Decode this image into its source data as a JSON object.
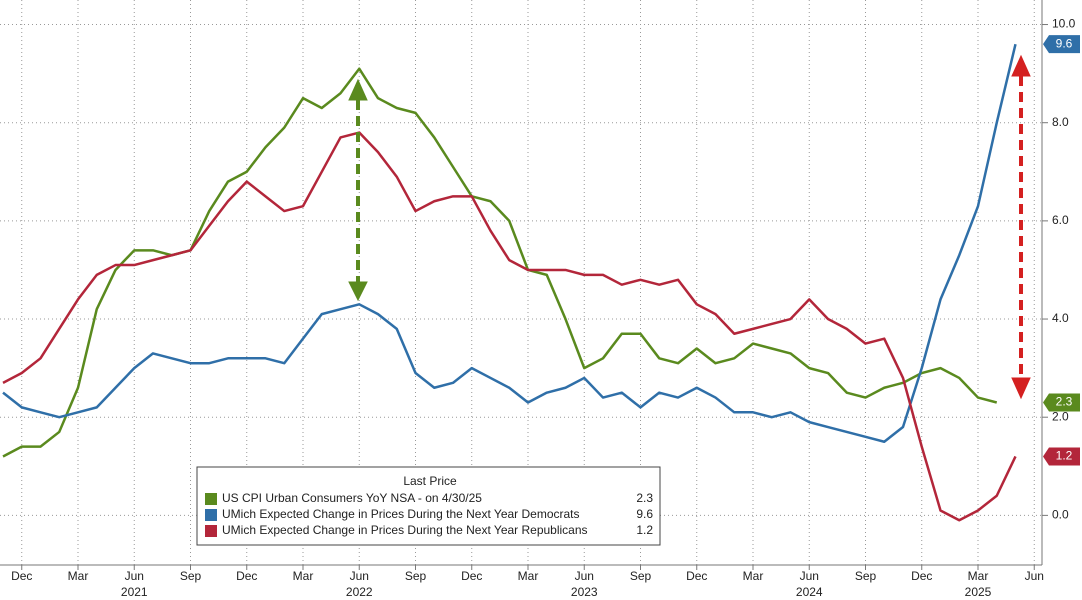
{
  "chart_data": {
    "type": "line",
    "x": [
      "2020-11",
      "2020-12",
      "2021-01",
      "2021-02",
      "2021-03",
      "2021-04",
      "2021-05",
      "2021-06",
      "2021-07",
      "2021-08",
      "2021-09",
      "2021-10",
      "2021-11",
      "2021-12",
      "2022-01",
      "2022-02",
      "2022-03",
      "2022-04",
      "2022-05",
      "2022-06",
      "2022-07",
      "2022-08",
      "2022-09",
      "2022-10",
      "2022-11",
      "2022-12",
      "2023-01",
      "2023-02",
      "2023-03",
      "2023-04",
      "2023-05",
      "2023-06",
      "2023-07",
      "2023-08",
      "2023-09",
      "2023-10",
      "2023-11",
      "2023-12",
      "2024-01",
      "2024-02",
      "2024-03",
      "2024-04",
      "2024-05",
      "2024-06",
      "2024-07",
      "2024-08",
      "2024-09",
      "2024-10",
      "2024-11",
      "2024-12",
      "2025-01",
      "2025-02",
      "2025-03",
      "2025-04",
      "2025-05"
    ],
    "series": [
      {
        "name": "US CPI Urban Consumers YoY NSA -  on 4/30/25",
        "color": "#5a8a1e",
        "values": [
          1.2,
          1.4,
          1.4,
          1.7,
          2.6,
          4.2,
          5.0,
          5.4,
          5.4,
          5.3,
          5.4,
          6.2,
          6.8,
          7.0,
          7.5,
          7.9,
          8.5,
          8.3,
          8.6,
          9.1,
          8.5,
          8.3,
          8.2,
          7.7,
          7.1,
          6.5,
          6.4,
          6.0,
          5.0,
          4.9,
          4.0,
          3.0,
          3.2,
          3.7,
          3.7,
          3.2,
          3.1,
          3.4,
          3.1,
          3.2,
          3.5,
          3.4,
          3.3,
          3.0,
          2.9,
          2.5,
          2.4,
          2.6,
          2.7,
          2.9,
          3.0,
          2.8,
          2.4,
          2.3,
          null
        ]
      },
      {
        "name": "UMich Expected Change in Prices During the Next Year Democrats",
        "color": "#2f6fa8",
        "values": [
          2.5,
          2.2,
          2.1,
          2.0,
          2.1,
          2.2,
          2.6,
          3.0,
          3.3,
          3.2,
          3.1,
          3.1,
          3.2,
          3.2,
          3.2,
          3.1,
          3.6,
          4.1,
          4.2,
          4.3,
          4.1,
          3.8,
          2.9,
          2.6,
          2.7,
          3.0,
          2.8,
          2.6,
          2.3,
          2.5,
          2.6,
          2.8,
          2.4,
          2.5,
          2.2,
          2.5,
          2.4,
          2.6,
          2.4,
          2.1,
          2.1,
          2.0,
          2.1,
          1.9,
          1.8,
          1.7,
          1.6,
          1.5,
          1.8,
          3.0,
          4.4,
          5.3,
          6.3,
          8.0,
          9.6
        ]
      },
      {
        "name": "UMich Expected Change in Prices During the Next Year Republicans",
        "color": "#b3263a",
        "values": [
          2.7,
          2.9,
          3.2,
          3.8,
          4.4,
          4.9,
          5.1,
          5.1,
          5.2,
          5.3,
          5.4,
          5.9,
          6.4,
          6.8,
          6.5,
          6.2,
          6.3,
          7.0,
          7.7,
          7.8,
          7.4,
          6.9,
          6.2,
          6.4,
          6.5,
          6.5,
          5.8,
          5.2,
          5.0,
          5.0,
          5.0,
          4.9,
          4.9,
          4.7,
          4.8,
          4.7,
          4.8,
          4.3,
          4.1,
          3.7,
          3.8,
          3.9,
          4.0,
          4.4,
          4.0,
          3.8,
          3.5,
          3.6,
          2.8,
          1.4,
          0.1,
          -0.1,
          0.1,
          0.4,
          1.2
        ]
      }
    ],
    "legend_title": "Last Price",
    "ylim": [
      -0.95,
      10.5
    ],
    "yticks": [
      {
        "value": 0,
        "label": "0.0"
      },
      {
        "value": 2,
        "label": "2.0"
      },
      {
        "value": 4,
        "label": "4.0"
      },
      {
        "value": 6,
        "label": "6.0"
      },
      {
        "value": 8,
        "label": "8.0"
      },
      {
        "value": 10,
        "label": "10.0"
      }
    ],
    "xticks": [
      {
        "value": "2020-12",
        "label": "Dec"
      },
      {
        "value": "2021-03",
        "label": "Mar"
      },
      {
        "value": "2021-06",
        "label": "Jun"
      },
      {
        "value": "2021-09",
        "label": "Sep"
      },
      {
        "value": "2021-12",
        "label": "Dec"
      },
      {
        "value": "2022-03",
        "label": "Mar"
      },
      {
        "value": "2022-06",
        "label": "Jun"
      },
      {
        "value": "2022-09",
        "label": "Sep"
      },
      {
        "value": "2022-12",
        "label": "Dec"
      },
      {
        "value": "2023-03",
        "label": "Mar"
      },
      {
        "value": "2023-06",
        "label": "Jun"
      },
      {
        "value": "2023-09",
        "label": "Sep"
      },
      {
        "value": "2023-12",
        "label": "Dec"
      },
      {
        "value": "2024-03",
        "label": "Mar"
      },
      {
        "value": "2024-06",
        "label": "Jun"
      },
      {
        "value": "2024-09",
        "label": "Sep"
      },
      {
        "value": "2024-12",
        "label": "Dec"
      },
      {
        "value": "2025-03",
        "label": "Mar"
      },
      {
        "value": "2025-06",
        "label": "Jun"
      }
    ],
    "year_labels": [
      {
        "value": "2021-06",
        "label": "2021"
      },
      {
        "value": "2022-06",
        "label": "2022"
      },
      {
        "value": "2023-06",
        "label": "2023"
      },
      {
        "value": "2024-06",
        "label": "2024"
      },
      {
        "value": "2025-03",
        "label": "2025"
      }
    ],
    "grid": true
  }
}
